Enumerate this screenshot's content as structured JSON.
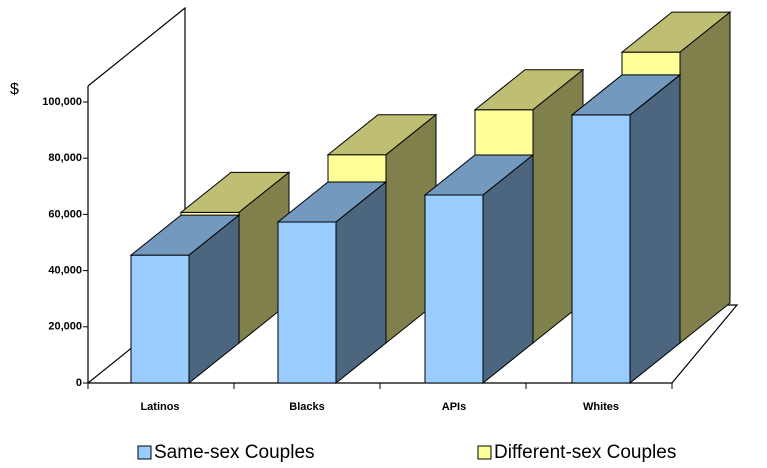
{
  "chart_data": {
    "type": "bar3d",
    "y_label": "$",
    "categories": [
      "Latinos",
      "Blacks",
      "APIs",
      "Whites"
    ],
    "series": [
      {
        "name": "Same-sex Couples",
        "color": "#99ccff",
        "values": [
          45500,
          57300,
          66900,
          95400
        ]
      },
      {
        "name": "Different-sex Couples",
        "color": "#ffff99",
        "values": [
          46500,
          67000,
          83000,
          103500
        ]
      }
    ],
    "ylim": [
      0,
      100000
    ],
    "yticks": [
      0,
      {
        "value": 20000,
        "label": "20,000"
      },
      {
        "value": 40000,
        "label": "40,000"
      },
      {
        "value": 60000,
        "label": "60,000"
      },
      {
        "value": 80000,
        "label": "80,000"
      },
      {
        "value": 100000,
        "label": "100,000"
      }
    ]
  }
}
